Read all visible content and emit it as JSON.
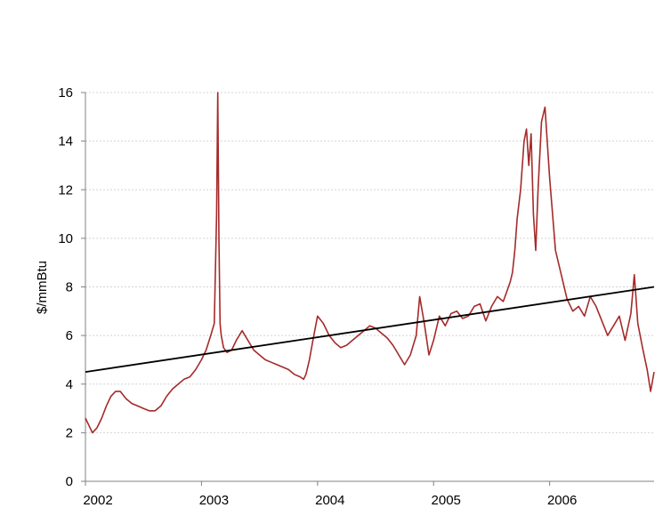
{
  "chart_data": {
    "type": "line",
    "title": "",
    "xlabel": "",
    "ylabel": "$/mmBtu",
    "xlim": [
      2002.0,
      2006.9
    ],
    "ylim": [
      0,
      16
    ],
    "x_ticks": [
      2002,
      2003,
      2004,
      2005,
      2006
    ],
    "x_tick_labels": [
      "2002",
      "2003",
      "2004",
      "2005",
      "2006"
    ],
    "y_ticks": [
      0,
      2,
      4,
      6,
      8,
      10,
      12,
      14,
      16
    ],
    "y_tick_labels": [
      "0",
      "2",
      "4",
      "6",
      "8",
      "10",
      "12",
      "14",
      "16"
    ],
    "grid": true,
    "legend": "none",
    "series": [
      {
        "color": "#a52a2a",
        "x": [
          2002.0,
          2002.03,
          2002.06,
          2002.1,
          2002.14,
          2002.18,
          2002.22,
          2002.26,
          2002.3,
          2002.35,
          2002.4,
          2002.45,
          2002.5,
          2002.55,
          2002.6,
          2002.65,
          2002.7,
          2002.75,
          2002.8,
          2002.85,
          2002.9,
          2002.95,
          2003.0,
          2003.04,
          2003.08,
          2003.11,
          2003.13,
          2003.14,
          2003.15,
          2003.16,
          2003.17,
          2003.19,
          2003.22,
          2003.26,
          2003.3,
          2003.35,
          2003.4,
          2003.45,
          2003.5,
          2003.55,
          2003.6,
          2003.65,
          2003.7,
          2003.75,
          2003.8,
          2003.85,
          2003.88,
          2003.9,
          2003.93,
          2003.96,
          2004.0,
          2004.05,
          2004.1,
          2004.15,
          2004.2,
          2004.25,
          2004.3,
          2004.35,
          2004.4,
          2004.45,
          2004.5,
          2004.55,
          2004.6,
          2004.65,
          2004.7,
          2004.75,
          2004.8,
          2004.85,
          2004.88,
          2004.92,
          2004.96,
          2005.0,
          2005.05,
          2005.1,
          2005.15,
          2005.2,
          2005.25,
          2005.3,
          2005.35,
          2005.4,
          2005.45,
          2005.5,
          2005.55,
          2005.6,
          2005.63,
          2005.66,
          2005.68,
          2005.7,
          2005.72,
          2005.75,
          2005.78,
          2005.8,
          2005.82,
          2005.84,
          2005.86,
          2005.88,
          2005.9,
          2005.93,
          2005.96,
          2006.0,
          2006.05,
          2006.1,
          2006.15,
          2006.2,
          2006.25,
          2006.3,
          2006.35,
          2006.4,
          2006.45,
          2006.5,
          2006.55,
          2006.6,
          2006.65,
          2006.7,
          2006.73,
          2006.76,
          2006.8,
          2006.84,
          2006.87,
          2006.9
        ],
        "y": [
          2.6,
          2.3,
          2.0,
          2.2,
          2.6,
          3.1,
          3.5,
          3.7,
          3.7,
          3.4,
          3.2,
          3.1,
          3.0,
          2.9,
          2.9,
          3.1,
          3.5,
          3.8,
          4.0,
          4.2,
          4.3,
          4.6,
          5.0,
          5.4,
          6.0,
          6.5,
          11.0,
          16.0,
          10.0,
          6.5,
          6.0,
          5.5,
          5.3,
          5.4,
          5.8,
          6.2,
          5.8,
          5.4,
          5.2,
          5.0,
          4.9,
          4.8,
          4.7,
          4.6,
          4.4,
          4.3,
          4.2,
          4.4,
          5.0,
          5.8,
          6.8,
          6.5,
          6.0,
          5.7,
          5.5,
          5.6,
          5.8,
          6.0,
          6.2,
          6.4,
          6.3,
          6.1,
          5.9,
          5.6,
          5.2,
          4.8,
          5.2,
          6.0,
          7.6,
          6.5,
          5.2,
          5.8,
          6.8,
          6.4,
          6.9,
          7.0,
          6.7,
          6.8,
          7.2,
          7.3,
          6.6,
          7.2,
          7.6,
          7.4,
          7.8,
          8.2,
          8.6,
          9.5,
          10.8,
          12.0,
          14.0,
          14.5,
          13.0,
          14.3,
          11.0,
          9.5,
          12.0,
          14.8,
          15.4,
          12.5,
          9.5,
          8.5,
          7.5,
          7.0,
          7.2,
          6.8,
          7.6,
          7.2,
          6.6,
          6.0,
          6.4,
          6.8,
          5.8,
          6.9,
          8.5,
          6.5,
          5.5,
          4.6,
          3.7,
          4.5
        ]
      },
      {
        "color": "#000000",
        "x": [
          2002.0,
          2006.9
        ],
        "y": [
          4.5,
          8.0
        ]
      }
    ]
  }
}
